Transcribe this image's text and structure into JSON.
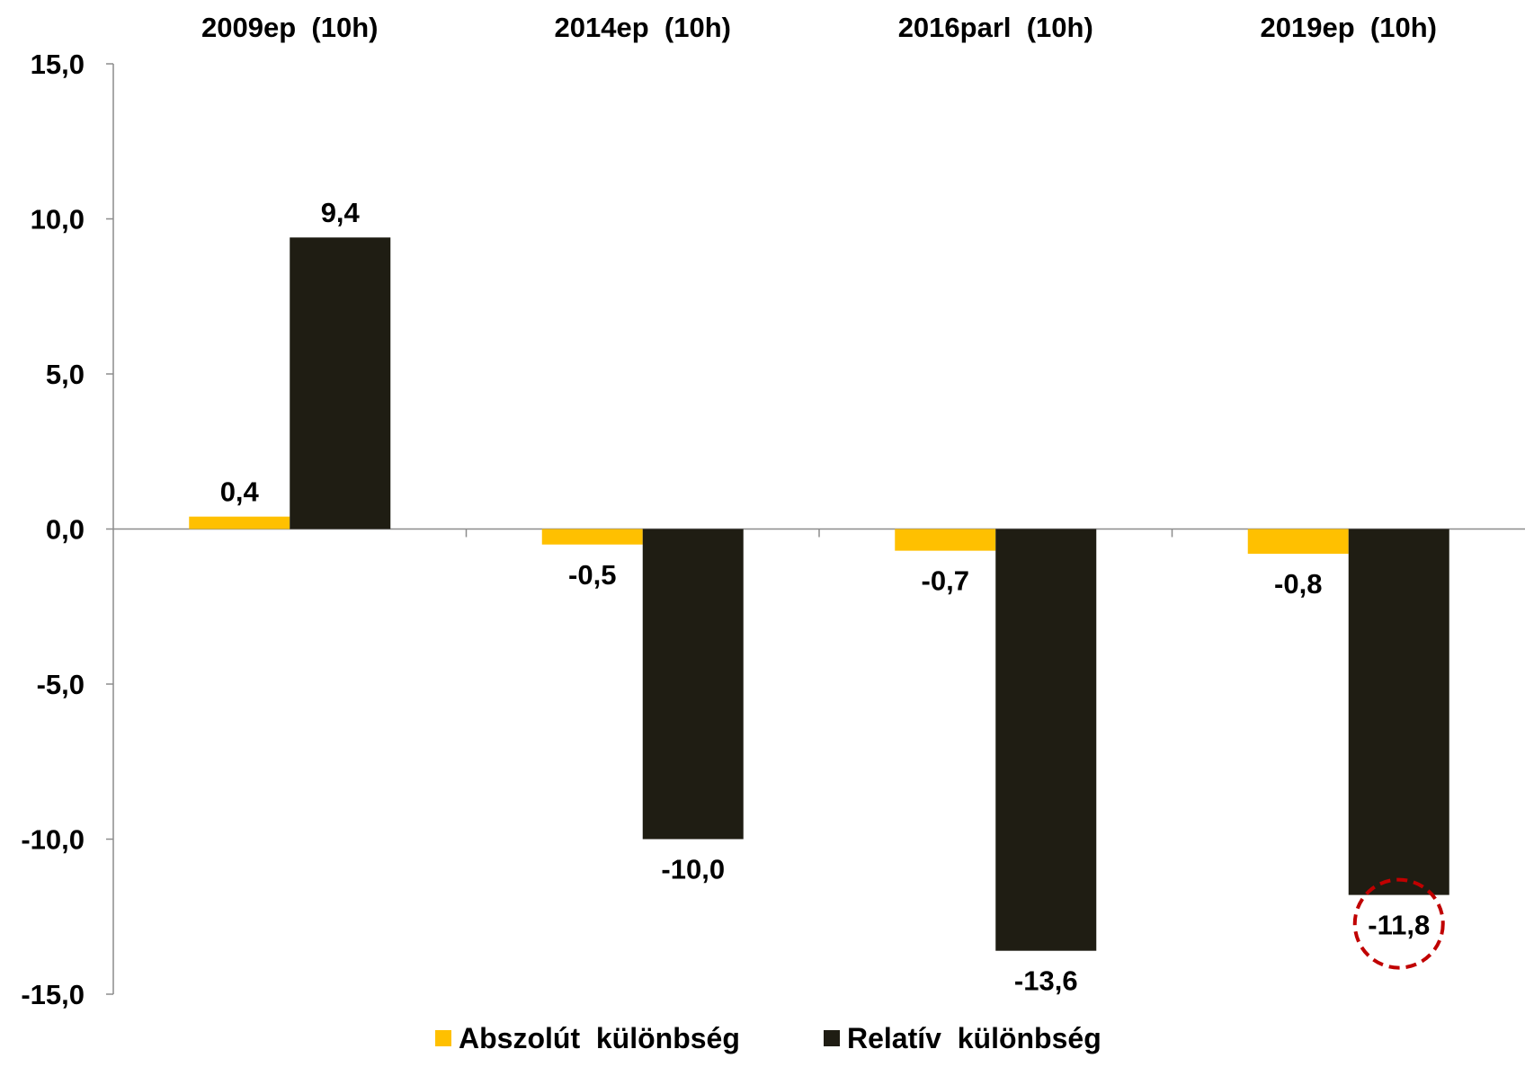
{
  "chart_data": {
    "type": "bar",
    "categories": [
      "2009ep  (10h)",
      "2014ep  (10h)",
      "2016parl  (10h)",
      "2019ep  (10h)"
    ],
    "series": [
      {
        "name": "Abszolút  különbség",
        "color": "#FFC000",
        "values": [
          0.4,
          -0.5,
          -0.7,
          -0.8
        ],
        "labels": [
          "0,4",
          "-0,5",
          "-0,7",
          "-0,8"
        ]
      },
      {
        "name": "Relatív  különbség",
        "color": "#1F1D13",
        "values": [
          9.4,
          -10.0,
          -13.6,
          -11.8
        ],
        "labels": [
          "9,4",
          "-10,0",
          "-13,6",
          "-11,8"
        ]
      }
    ],
    "ylim": [
      -15,
      15
    ],
    "yticks": [
      15,
      10,
      5,
      0,
      -5,
      -10,
      -15
    ],
    "ytick_labels": [
      "15,0",
      "10,0",
      "5,0",
      "0,0",
      "-5,0",
      "-10,0",
      "-15,0"
    ],
    "category_label_position": "top",
    "legend_position": "bottom",
    "grid": false,
    "highlight": {
      "series": 1,
      "category": 3,
      "shape": "dashed-circle",
      "color": "#C00000"
    }
  }
}
